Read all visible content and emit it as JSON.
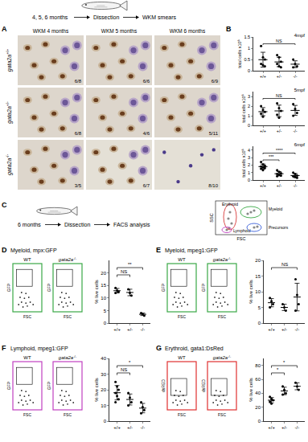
{
  "header": {
    "ages": "4, 5, 6 months",
    "steps": [
      "Dissection",
      "WKM smears"
    ]
  },
  "panel_labels": [
    "A",
    "B",
    "C",
    "D",
    "E",
    "F",
    "G"
  ],
  "panel_a": {
    "columns": [
      "WKM 4 months",
      "WKM 5 months",
      "WKM 6 months"
    ],
    "gene": "gata2a",
    "rows": [
      "+/+",
      "+/-",
      "-/-"
    ],
    "fractions": [
      [
        "6/8",
        "6/6",
        "6/9"
      ],
      [
        "6/8",
        "4/6",
        "5/11"
      ],
      [
        "3/5",
        "6/7",
        "8/10"
      ]
    ]
  },
  "panel_c": {
    "age": "6 months",
    "steps": [
      "Dissection",
      "FACS analysis"
    ],
    "gates": [
      {
        "label": "Erythroid",
        "color": "#d83a3a"
      },
      {
        "label": "Myeloid",
        "color": "#3aa846"
      },
      {
        "label": "Lymphoid",
        "color": "#c040c0"
      },
      {
        "label": "Precursors",
        "color": "#3a5fd8"
      }
    ],
    "x_label": "FSC",
    "y_label": "SSC"
  },
  "chart_data": [
    {
      "panel": "B",
      "type": "dot",
      "title": "4mpf",
      "y_label": "total cells x10⁶",
      "categories": [
        "+/+",
        "+/-",
        "-/-"
      ],
      "points": [
        [
          1.1,
          0.6,
          0.5,
          0.3,
          0.25,
          0.2
        ],
        [
          0.7,
          0.6,
          0.4,
          0.3,
          0.2,
          0.15
        ],
        [
          0.5,
          0.3,
          0.2,
          0.15
        ]
      ],
      "means": [
        0.49,
        0.39,
        0.29
      ],
      "sd": [
        0.33,
        0.21,
        0.15
      ],
      "ylim": [
        0,
        1.5
      ],
      "yticks": [
        0,
        0.5,
        1,
        1.5
      ],
      "significance": [
        {
          "text": "NS",
          "from": 0,
          "to": 2
        }
      ]
    },
    {
      "panel": "B",
      "type": "dot",
      "title": "5mpf",
      "y_label": "total cells x10⁶",
      "categories": [
        "+/+",
        "+/-",
        "-/-"
      ],
      "points": [
        [
          2.0,
          1.6,
          1.4,
          1.2,
          0.9
        ],
        [
          2.3,
          1.8,
          1.5,
          1.1,
          0.8
        ],
        [
          2.2,
          1.7,
          1.3,
          1.0
        ]
      ],
      "means": [
        1.42,
        1.5,
        1.55
      ],
      "sd": [
        0.42,
        0.6,
        0.52
      ],
      "ylim": [
        0,
        3.5
      ],
      "yticks": [
        0,
        1,
        2,
        3
      ],
      "significance": [
        {
          "text": "NS",
          "from": 0,
          "to": 2
        }
      ]
    },
    {
      "panel": "B",
      "type": "dot",
      "title": "6mpf",
      "y_label": "total cells x10⁶",
      "categories": [
        "+/+",
        "+/-",
        "-/-"
      ],
      "points": [
        [
          2.4,
          2.1,
          1.9,
          1.8,
          1.7,
          1.6,
          1.5,
          1.3
        ],
        [
          1.3,
          1.1,
          0.9,
          0.8,
          0.7,
          0.6,
          0.5
        ],
        [
          1.0,
          0.8,
          0.6,
          0.5,
          0.4,
          0.3
        ]
      ],
      "means": [
        1.79,
        0.84,
        0.6
      ],
      "sd": [
        0.34,
        0.29,
        0.26
      ],
      "ylim": [
        0,
        4.5
      ],
      "yticks": [
        0,
        1,
        2,
        3,
        4
      ],
      "significance": [
        {
          "text": "***",
          "from": 0,
          "to": 1
        },
        {
          "text": "****",
          "from": 0,
          "to": 2
        }
      ]
    },
    {
      "panel": "D",
      "type": "dot",
      "title": "Myeloid, mpx:GFP",
      "color": "#3aa846",
      "y_label": "% live cells",
      "categories": [
        "+/+",
        "+/-",
        "-/-"
      ],
      "points": [
        [
          14,
          13,
          12.5,
          12
        ],
        [
          13.5,
          12,
          11
        ],
        [
          4,
          3.5,
          3
        ]
      ],
      "means": [
        12.9,
        12.2,
        3.5
      ],
      "sd": [
        0.9,
        1.3,
        0.5
      ],
      "ylim": [
        0,
        25
      ],
      "yticks": [
        0,
        5,
        10,
        15,
        20
      ],
      "significance": [
        {
          "text": "NS",
          "from": 0,
          "to": 1
        },
        {
          "text": "**",
          "from": 0,
          "to": 2
        }
      ],
      "facs": {
        "labels": [
          {
            "text": "WT"
          },
          {
            "gene": "gata2a",
            "genotype": "-/-"
          }
        ],
        "y_label": "GFP",
        "x_label": "FSC"
      }
    },
    {
      "panel": "E",
      "type": "dot",
      "title": "Myeloid, mpeg1:GFP",
      "color": "#3aa846",
      "y_label": "% live cells",
      "categories": [
        "+/+",
        "+/-",
        "-/-"
      ],
      "points": [
        [
          8,
          7,
          6,
          5
        ],
        [
          6,
          5,
          4
        ],
        [
          14,
          9,
          6,
          4
        ]
      ],
      "means": [
        6.5,
        5,
        8.3
      ],
      "sd": [
        1.3,
        1,
        4.4
      ],
      "ylim": [
        0,
        20
      ],
      "yticks": [
        0,
        5,
        10,
        15,
        20
      ],
      "significance": [
        {
          "text": "NS",
          "from": 0,
          "to": 2
        }
      ],
      "facs": {
        "labels": [
          {
            "text": "WT"
          },
          {
            "gene": "gata2a",
            "genotype": "-/-"
          }
        ],
        "y_label": "GFP",
        "x_label": "FSC"
      }
    },
    {
      "panel": "F",
      "type": "dot",
      "title": "Lymphoid, mpeg1:GFP",
      "color": "#c040c0",
      "y_label": "% live cells",
      "categories": [
        "+/+",
        "+/-",
        "-/-"
      ],
      "points": [
        [
          25,
          22,
          20,
          18,
          16,
          14,
          12
        ],
        [
          18,
          15,
          12,
          10
        ],
        [
          12,
          9,
          7,
          5
        ]
      ],
      "means": [
        18.1,
        13.8,
        8.3
      ],
      "sd": [
        4.6,
        3.5,
        3
      ],
      "ylim": [
        0,
        40
      ],
      "yticks": [
        0,
        10,
        20,
        30,
        40
      ],
      "significance": [
        {
          "text": "NS",
          "from": 0,
          "to": 1
        },
        {
          "text": "*",
          "from": 0,
          "to": 2
        }
      ],
      "facs": {
        "labels": [
          {
            "text": "WT"
          },
          {
            "gene": "gata2a",
            "genotype": "-/-"
          }
        ],
        "y_label": "GFP",
        "x_label": "FSC"
      }
    },
    {
      "panel": "G",
      "type": "dot",
      "title": "Erythroid, gata1:DsRed",
      "color": "#e03030",
      "y_label": "% live cells",
      "categories": [
        "+/+",
        "+/-",
        "-/-"
      ],
      "points": [
        [
          35,
          32,
          30,
          28,
          25
        ],
        [
          50,
          45,
          40,
          38
        ],
        [
          55,
          50,
          45
        ]
      ],
      "means": [
        30,
        43.3,
        50
      ],
      "sd": [
        3.8,
        5.4,
        5
      ],
      "ylim": [
        0,
        90
      ],
      "yticks": [
        0,
        20,
        40,
        60,
        80
      ],
      "significance": [
        {
          "text": "*",
          "from": 0,
          "to": 1
        },
        {
          "text": "*",
          "from": 0,
          "to": 2
        }
      ],
      "facs": {
        "labels": [
          {
            "text": "WT"
          },
          {
            "gene": "gata2a",
            "genotype": "-/-"
          }
        ],
        "y_label": "dsRED",
        "x_label": "FSC"
      }
    }
  ]
}
